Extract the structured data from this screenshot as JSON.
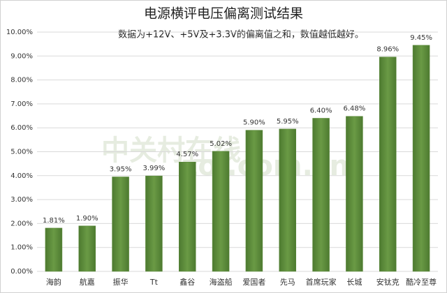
{
  "chart_data": {
    "type": "bar",
    "title": "电源横评电压偏离测试结果",
    "subtitle": "数据为+12V、+5V及+3.3V的偏离值之和，数值越低越好。",
    "watermark": [
      "中关村在线",
      "zol.com.cn"
    ],
    "categories": [
      "海韵",
      "航嘉",
      "振华",
      "Tt",
      "鑫谷",
      "海盗船",
      "爱国者",
      "先马",
      "首席玩家",
      "长城",
      "安钛克",
      "酷冷至尊"
    ],
    "values": [
      1.81,
      1.9,
      3.95,
      3.99,
      4.57,
      5.02,
      5.9,
      5.95,
      6.4,
      6.48,
      8.96,
      9.45
    ],
    "value_labels": [
      "1.81%",
      "1.90%",
      "3.95%",
      "3.99%",
      "4.57%",
      "5.02%",
      "5.90%",
      "5.95%",
      "6.40%",
      "6.48%",
      "8.96%",
      "9.45%"
    ],
    "color": "#5b8a3a",
    "ylim": [
      0,
      10
    ],
    "yticks": [
      {
        "value": 0,
        "label": "0.00%"
      },
      {
        "value": 1,
        "label": "1.00%"
      },
      {
        "value": 2,
        "label": "2.00%"
      },
      {
        "value": 3,
        "label": "3.00%"
      },
      {
        "value": 4,
        "label": "4.00%"
      },
      {
        "value": 5,
        "label": "5.00%"
      },
      {
        "value": 6,
        "label": "6.00%"
      },
      {
        "value": 7,
        "label": "7.00%"
      },
      {
        "value": 8,
        "label": "8.00%"
      },
      {
        "value": 9,
        "label": "9.00%"
      },
      {
        "value": 10,
        "label": "10.00%"
      }
    ],
    "grid": true
  }
}
